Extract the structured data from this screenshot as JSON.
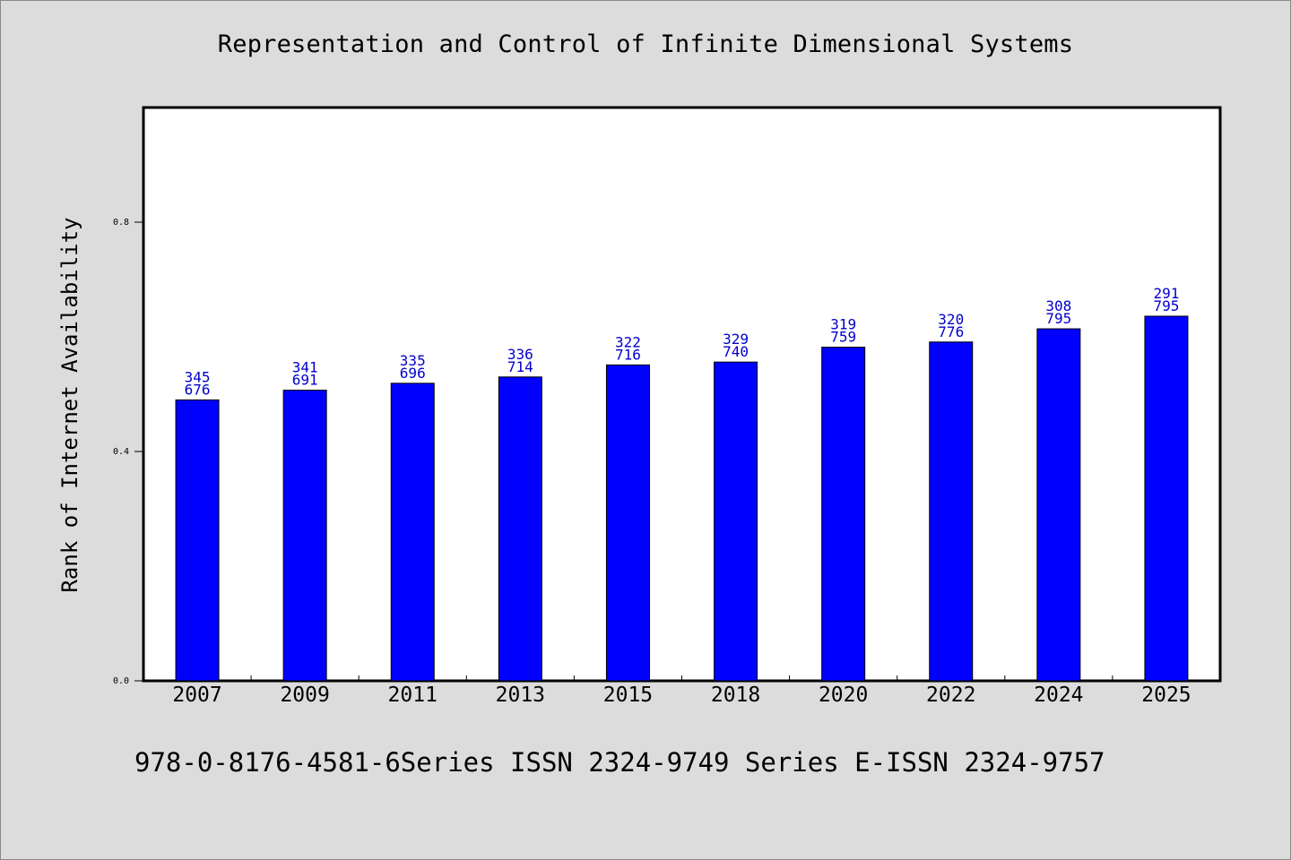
{
  "chart_data": {
    "type": "bar",
    "title": "Representation and Control of Infinite Dimensional Systems",
    "xlabel": "",
    "ylabel": "Rank of Internet Availability",
    "categories": [
      "2007",
      "2009",
      "2011",
      "2013",
      "2015",
      "2018",
      "2020",
      "2022",
      "2024",
      "2025"
    ],
    "values": [
      0.49,
      0.507,
      0.519,
      0.53,
      0.551,
      0.556,
      0.582,
      0.591,
      0.614,
      0.636
    ],
    "labels_top": [
      "345",
      "341",
      "335",
      "336",
      "322",
      "329",
      "319",
      "320",
      "308",
      "291"
    ],
    "labels_bottom": [
      "676",
      "691",
      "696",
      "714",
      "716",
      "740",
      "759",
      "776",
      "795",
      "795"
    ],
    "yticks": [
      "0.0",
      "0.4",
      "0.8"
    ],
    "ylim": [
      0,
      1.0
    ],
    "grid": false,
    "legend": "none",
    "bar_color": "#0000ff",
    "label_color": "#0000cc"
  },
  "footer": "978-0-8176-4581-6Series ISSN 2324-9749 Series E-ISSN 2324-9757"
}
